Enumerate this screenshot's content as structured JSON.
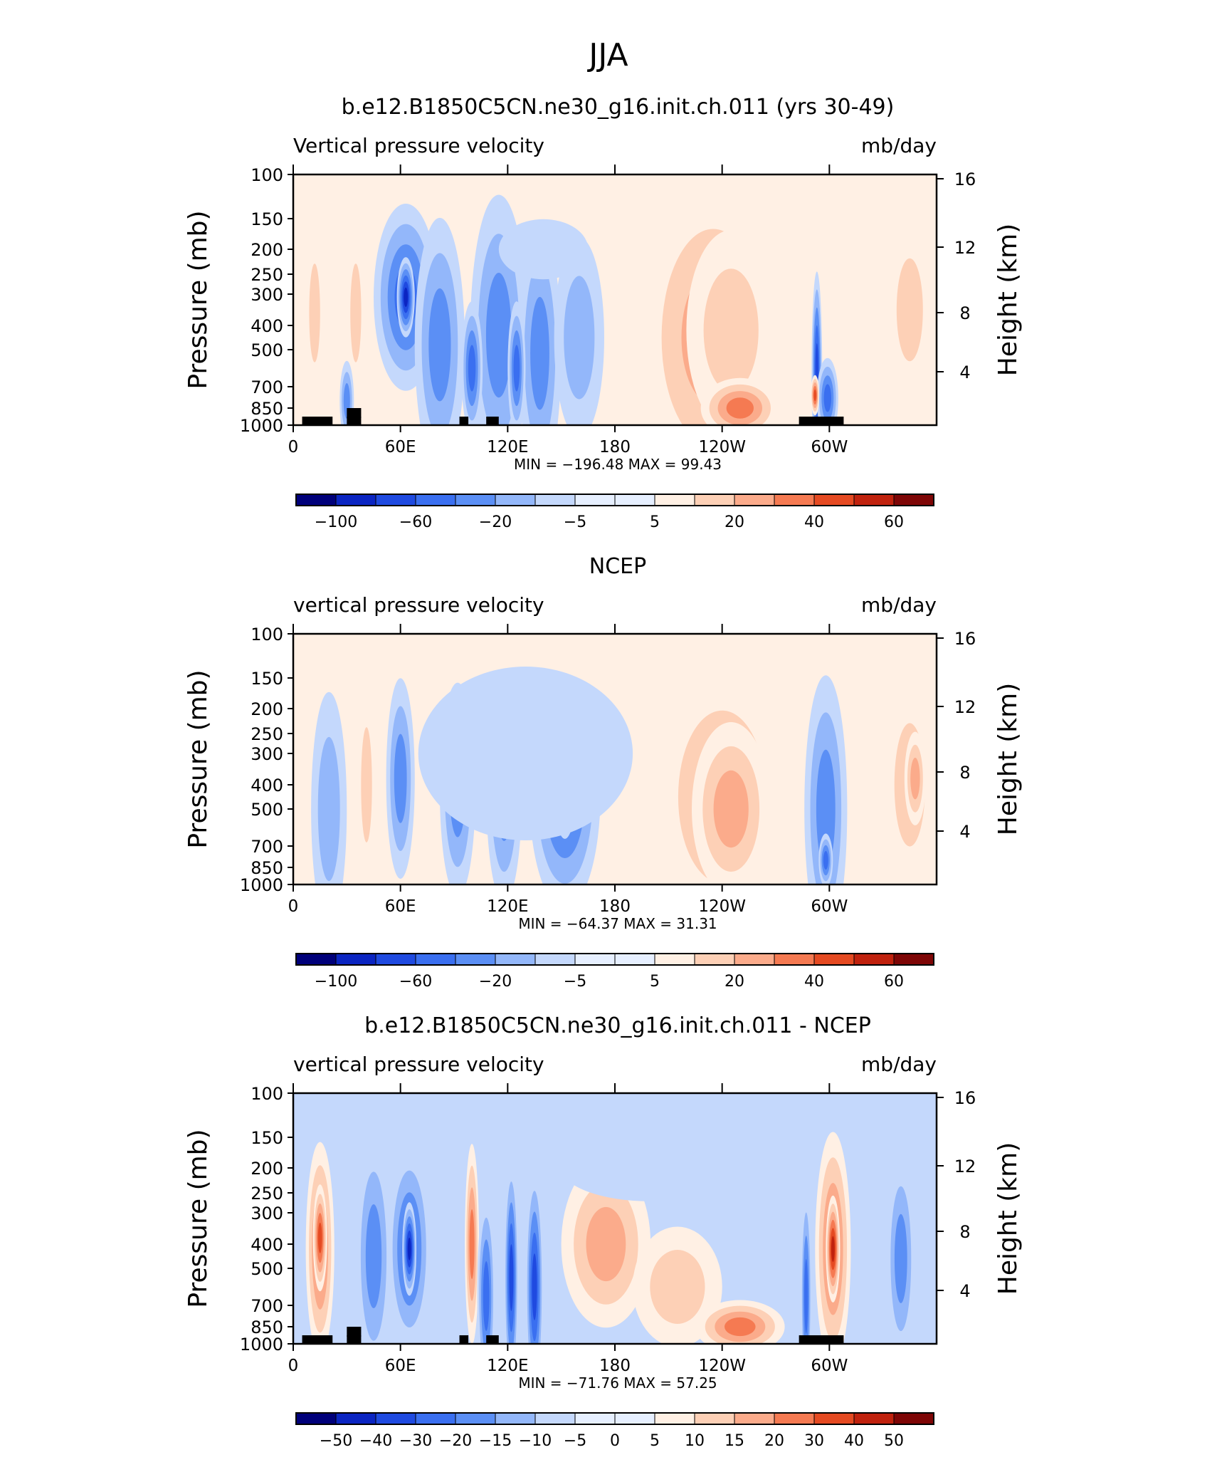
{
  "figure": {
    "title": "JJA"
  },
  "colors": {
    "wheel": [
      "#00007a",
      "#0b25c2",
      "#1f4ae0",
      "#3a6ff0",
      "#5b8ff5",
      "#93b7fa",
      "#c4d8fc",
      "#e6efff",
      "#fff0e4",
      "#fdd0b6",
      "#fbab8b",
      "#f57a52",
      "#e54a22",
      "#c0220e",
      "#7e0606"
    ]
  },
  "chart_data": [
    {
      "type": "heatmap",
      "panel_title": "b.e12.B1850C5CN.ne30_g16.init.ch.011 (yrs 30-49)",
      "left_label": "Vertical pressure velocity",
      "right_label": "mb/day",
      "ylabel": "Pressure (mb)",
      "ylabel_right": "Height (km)",
      "x_ticks": [
        "0",
        "60E",
        "120E",
        "180",
        "120W",
        "60W"
      ],
      "y_ticks": [
        "100",
        "150",
        "200",
        "250",
        "300",
        "400",
        "500",
        "700",
        "850",
        "1000"
      ],
      "y2_ticks": [
        "16",
        "12",
        "8",
        "4"
      ],
      "stats": "MIN = −196.48   MAX =   99.43",
      "colorbar_labels": [
        "−100",
        "−60",
        "−20",
        "−5",
        "5",
        "20",
        "40",
        "60"
      ],
      "blobs": [
        {
          "lon": 12,
          "p": 360,
          "lw": 5,
          "lp": 240,
          "l": 2
        },
        {
          "lon": 35,
          "p": 360,
          "lw": 5,
          "lp": 240,
          "l": 2
        },
        {
          "lon": 30,
          "p": 800,
          "lw": 4,
          "lp": 120,
          "l": -3
        },
        {
          "lon": 63,
          "p": 310,
          "lw": 18,
          "lp": 280,
          "l": -4
        },
        {
          "lon": 63,
          "p": 310,
          "lw": 5,
          "lp": 120,
          "l": -6
        },
        {
          "lon": 82,
          "p": 480,
          "lw": 14,
          "lp": 380,
          "l": -3
        },
        {
          "lon": 115,
          "p": 440,
          "lw": 16,
          "lp": 420,
          "l": -3
        },
        {
          "lon": 138,
          "p": 520,
          "lw": 12,
          "lp": 380,
          "l": -3
        },
        {
          "lon": 100,
          "p": 600,
          "lw": 6,
          "lp": 200,
          "l": -4
        },
        {
          "lon": 125,
          "p": 600,
          "lw": 5,
          "lp": 200,
          "l": -4
        },
        {
          "lon": 140,
          "p": 200,
          "lw": 25,
          "lp": 90,
          "l": -1
        },
        {
          "lon": 160,
          "p": 450,
          "lw": 14,
          "lp": 300,
          "l": -2
        },
        {
          "lon": 235,
          "p": 450,
          "lw": 40,
          "lp": 450,
          "l": 3
        },
        {
          "lon": 245,
          "p": 420,
          "lw": 25,
          "lp": 300,
          "l": 2
        },
        {
          "lon": 250,
          "p": 850,
          "lw": 22,
          "lp": 90,
          "l": 4
        },
        {
          "lon": 293,
          "p": 620,
          "lw": 3,
          "lp": 300,
          "l": -5
        },
        {
          "lon": 299,
          "p": 780,
          "lw": 6,
          "lp": 120,
          "l": -4
        },
        {
          "lon": 292,
          "p": 760,
          "lw": 2,
          "lp": 60,
          "l": 5
        },
        {
          "lon": 345,
          "p": 350,
          "lw": 12,
          "lp": 250,
          "l": 2
        },
        {
          "lon": 315,
          "p": 350,
          "lw": 8,
          "lp": 200,
          "l": 1
        }
      ],
      "base_level": 0
    },
    {
      "type": "heatmap",
      "panel_title": "NCEP",
      "left_label": "vertical pressure velocity",
      "right_label": "mb/day",
      "ylabel": "Pressure (mb)",
      "ylabel_right": "Height (km)",
      "x_ticks": [
        "0",
        "60E",
        "120E",
        "180",
        "120W",
        "60W"
      ],
      "y_ticks": [
        "100",
        "150",
        "200",
        "250",
        "300",
        "400",
        "500",
        "700",
        "850",
        "1000"
      ],
      "y2_ticks": [
        "16",
        "12",
        "8",
        "4"
      ],
      "stats": "MIN =  −64.37   MAX =   31.31",
      "colorbar_labels": [
        "−100",
        "−60",
        "−20",
        "−5",
        "5",
        "20",
        "40",
        "60"
      ],
      "blobs": [
        {
          "lon": 20,
          "p": 500,
          "lw": 10,
          "lp": 350,
          "l": -2
        },
        {
          "lon": 41,
          "p": 400,
          "lw": 5,
          "lp": 280,
          "l": 2
        },
        {
          "lon": 3,
          "p": 600,
          "lw": 4,
          "lp": 300,
          "l": 1
        },
        {
          "lon": 60,
          "p": 380,
          "lw": 8,
          "lp": 300,
          "l": -3
        },
        {
          "lon": 92,
          "p": 420,
          "lw": 10,
          "lp": 320,
          "l": -3
        },
        {
          "lon": 118,
          "p": 430,
          "lw": 10,
          "lp": 330,
          "l": -3
        },
        {
          "lon": 152,
          "p": 430,
          "lw": 20,
          "lp": 350,
          "l": -4
        },
        {
          "lon": 152,
          "p": 430,
          "lw": 6,
          "lp": 140,
          "l": -5
        },
        {
          "lon": 130,
          "p": 300,
          "lw": 60,
          "lp": 260,
          "l": -1
        },
        {
          "lon": 240,
          "p": 450,
          "lw": 40,
          "lp": 420,
          "l": 2
        },
        {
          "lon": 245,
          "p": 500,
          "lw": 22,
          "lp": 260,
          "l": 3
        },
        {
          "lon": 298,
          "p": 500,
          "lw": 12,
          "lp": 400,
          "l": -3
        },
        {
          "lon": 298,
          "p": 800,
          "lw": 4,
          "lp": 80,
          "l": -4
        },
        {
          "lon": 345,
          "p": 400,
          "lw": 14,
          "lp": 300,
          "l": 2
        },
        {
          "lon": 348,
          "p": 380,
          "lw": 6,
          "lp": 140,
          "l": 3
        }
      ],
      "base_level": 0
    },
    {
      "type": "heatmap",
      "panel_title": "b.e12.B1850C5CN.ne30_g16.init.ch.011 - NCEP",
      "left_label": "vertical pressure velocity",
      "right_label": "mb/day",
      "ylabel": "Pressure (mb)",
      "ylabel_right": "Height (km)",
      "x_ticks": [
        "0",
        "60E",
        "120E",
        "180",
        "120W",
        "60W"
      ],
      "y_ticks": [
        "100",
        "150",
        "200",
        "250",
        "300",
        "400",
        "500",
        "700",
        "850",
        "1000"
      ],
      "y2_ticks": [
        "16",
        "12",
        "8",
        "4"
      ],
      "y2_ticks_note": "",
      "stats": "MIN =  −71.76   MAX =   57.25",
      "colorbar_labels": [
        "−50",
        "−40",
        "−30",
        "−20",
        "−15",
        "−10",
        "−5",
        "0",
        "5",
        "10",
        "15",
        "20",
        "30",
        "40",
        "50"
      ],
      "blobs": [
        {
          "lon": 15,
          "p": 420,
          "lw": 8,
          "lp": 320,
          "l": 4
        },
        {
          "lon": 15,
          "p": 380,
          "lw": 4,
          "lp": 160,
          "l": 5
        },
        {
          "lon": 45,
          "p": 450,
          "lw": 10,
          "lp": 350,
          "l": -3
        },
        {
          "lon": 65,
          "p": 420,
          "lw": 12,
          "lp": 300,
          "l": -4
        },
        {
          "lon": 65,
          "p": 420,
          "lw": 4,
          "lp": 140,
          "l": -6
        },
        {
          "lon": 100,
          "p": 400,
          "lw": 4,
          "lp": 300,
          "l": 4
        },
        {
          "lon": 108,
          "p": 650,
          "lw": 5,
          "lp": 300,
          "l": -4
        },
        {
          "lon": 122,
          "p": 550,
          "lw": 4,
          "lp": 350,
          "l": -5
        },
        {
          "lon": 135,
          "p": 600,
          "lw": 5,
          "lp": 350,
          "l": -5
        },
        {
          "lon": 175,
          "p": 400,
          "lw": 25,
          "lp": 250,
          "l": 3
        },
        {
          "lon": 215,
          "p": 600,
          "lw": 25,
          "lp": 180,
          "l": 2
        },
        {
          "lon": 250,
          "p": 850,
          "lw": 25,
          "lp": 80,
          "l": 4
        },
        {
          "lon": 287,
          "p": 650,
          "lw": 3,
          "lp": 320,
          "l": -4
        },
        {
          "lon": 302,
          "p": 420,
          "lw": 10,
          "lp": 350,
          "l": 4
        },
        {
          "lon": 302,
          "p": 420,
          "lw": 4,
          "lp": 160,
          "l": 6
        },
        {
          "lon": 340,
          "p": 460,
          "lw": 8,
          "lp": 300,
          "l": -3
        },
        {
          "lon": 200,
          "p": 200,
          "lw": 50,
          "lp": 100,
          "l": -1
        }
      ],
      "base_level": -1
    }
  ]
}
